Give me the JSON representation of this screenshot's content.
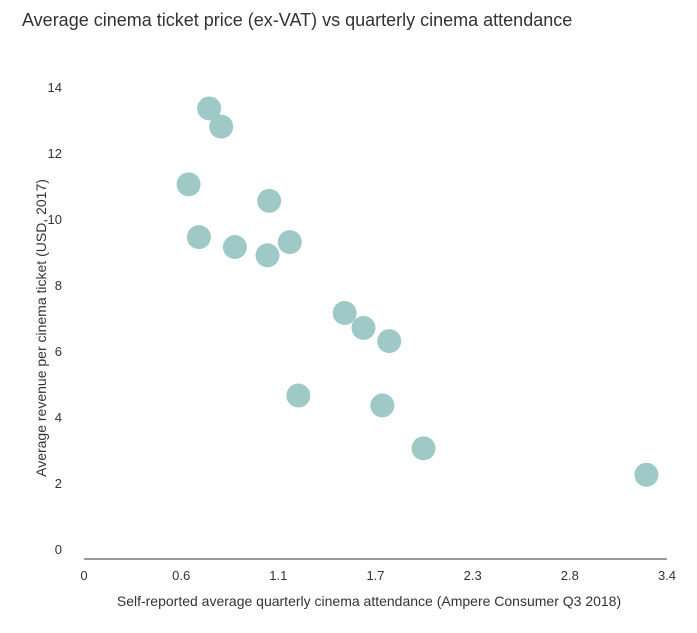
{
  "chart_data": {
    "type": "scatter",
    "title": "Average cinema ticket price (ex-VAT) vs quarterly cinema attendance",
    "xlabel": "Self-reported average quarterly cinema attendance (Ampere Consumer Q3 2018)",
    "ylabel": "Average revenue per cinema ticket (USD, 2017)",
    "xlim": [
      0,
      3.4
    ],
    "ylim": [
      0,
      14
    ],
    "x_ticks": [
      "0",
      "0.6",
      "1.1",
      "1.7",
      "2.3",
      "2.8",
      "3.4"
    ],
    "y_ticks": [
      "0",
      "2",
      "4",
      "6",
      "8",
      "10",
      "12",
      "14"
    ],
    "grid": false,
    "point_color": "#9ec9c6",
    "points": [
      {
        "x": 0.73,
        "y": 13.35
      },
      {
        "x": 0.8,
        "y": 12.8
      },
      {
        "x": 0.61,
        "y": 11.05
      },
      {
        "x": 1.08,
        "y": 10.55
      },
      {
        "x": 0.67,
        "y": 9.45
      },
      {
        "x": 0.88,
        "y": 9.15
      },
      {
        "x": 1.2,
        "y": 9.3
      },
      {
        "x": 1.07,
        "y": 8.9
      },
      {
        "x": 1.52,
        "y": 7.15
      },
      {
        "x": 1.63,
        "y": 6.7
      },
      {
        "x": 1.78,
        "y": 6.3
      },
      {
        "x": 1.25,
        "y": 4.65
      },
      {
        "x": 1.74,
        "y": 4.35
      },
      {
        "x": 1.98,
        "y": 3.05
      },
      {
        "x": 3.28,
        "y": 2.25
      }
    ]
  }
}
